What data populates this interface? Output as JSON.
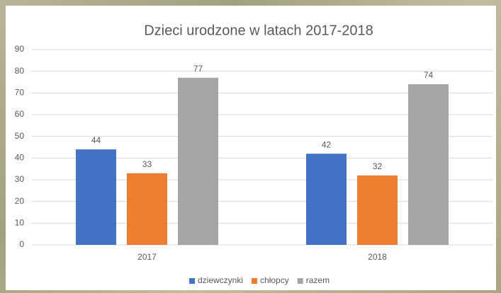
{
  "chart_data": {
    "type": "bar",
    "title": "Dzieci urodzone  w latach 2017-2018",
    "categories": [
      "2017",
      "2018"
    ],
    "series": [
      {
        "name": "dziewczynki",
        "color": "#4472c4",
        "values": [
          44,
          42
        ]
      },
      {
        "name": "chłopcy",
        "color": "#ed7d31",
        "values": [
          33,
          32
        ]
      },
      {
        "name": "razem",
        "color": "#a5a5a5",
        "values": [
          77,
          74
        ]
      }
    ],
    "ylim": [
      0,
      90
    ],
    "yticks": [
      0,
      10,
      20,
      30,
      40,
      50,
      60,
      70,
      80,
      90
    ],
    "grid": true,
    "data_labels": true,
    "legend": "bottom"
  }
}
